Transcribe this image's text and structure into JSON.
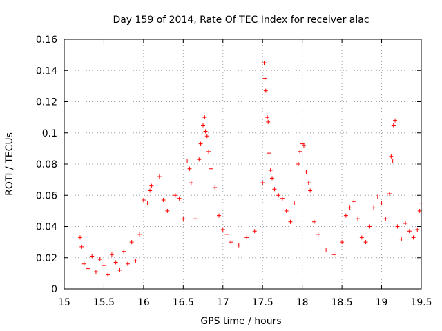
{
  "chart_data": {
    "type": "scatter",
    "title": "Day 159 of 2014, Rate Of TEC Index for receiver alac",
    "xlabel": "GPS time / hours",
    "ylabel": "ROTI / TECUs",
    "xlim": [
      15,
      19.5
    ],
    "ylim": [
      0,
      0.16
    ],
    "grid": true,
    "marker": "+",
    "marker_color": "#ff0000",
    "xticks": [
      15,
      15.5,
      16,
      16.5,
      17,
      17.5,
      18,
      18.5,
      19,
      19.5
    ],
    "xtick_labels": [
      "15",
      "15.5",
      "16",
      "16.5",
      "17",
      "17.5",
      "18",
      "18.5",
      "19",
      "19.5"
    ],
    "yticks": [
      0,
      0.02,
      0.04,
      0.06,
      0.08,
      0.1,
      0.12,
      0.14,
      0.16
    ],
    "ytick_labels": [
      "0",
      "0.02",
      "0.04",
      "0.06",
      "0.08",
      "0.1",
      "0.12",
      "0.14",
      "0.16"
    ],
    "series": [
      {
        "name": "ROTI",
        "points": [
          [
            15.2,
            0.033
          ],
          [
            15.22,
            0.027
          ],
          [
            15.25,
            0.016
          ],
          [
            15.3,
            0.013
          ],
          [
            15.35,
            0.021
          ],
          [
            15.4,
            0.011
          ],
          [
            15.45,
            0.019
          ],
          [
            15.5,
            0.015
          ],
          [
            15.55,
            0.009
          ],
          [
            15.6,
            0.022
          ],
          [
            15.65,
            0.017
          ],
          [
            15.7,
            0.012
          ],
          [
            15.75,
            0.024
          ],
          [
            15.8,
            0.016
          ],
          [
            15.85,
            0.03
          ],
          [
            15.9,
            0.018
          ],
          [
            15.95,
            0.035
          ],
          [
            16.0,
            0.057
          ],
          [
            16.05,
            0.055
          ],
          [
            16.08,
            0.063
          ],
          [
            16.1,
            0.066
          ],
          [
            16.2,
            0.072
          ],
          [
            16.25,
            0.057
          ],
          [
            16.3,
            0.05
          ],
          [
            16.4,
            0.06
          ],
          [
            16.45,
            0.058
          ],
          [
            16.5,
            0.045
          ],
          [
            16.55,
            0.082
          ],
          [
            16.58,
            0.077
          ],
          [
            16.6,
            0.068
          ],
          [
            16.65,
            0.045
          ],
          [
            16.7,
            0.083
          ],
          [
            16.72,
            0.093
          ],
          [
            16.75,
            0.105
          ],
          [
            16.77,
            0.11
          ],
          [
            16.78,
            0.101
          ],
          [
            16.8,
            0.098
          ],
          [
            16.82,
            0.088
          ],
          [
            16.85,
            0.077
          ],
          [
            16.9,
            0.065
          ],
          [
            16.95,
            0.047
          ],
          [
            17.0,
            0.038
          ],
          [
            17.05,
            0.035
          ],
          [
            17.1,
            0.03
          ],
          [
            17.2,
            0.028
          ],
          [
            17.3,
            0.033
          ],
          [
            17.4,
            0.037
          ],
          [
            17.5,
            0.068
          ],
          [
            17.52,
            0.145
          ],
          [
            17.53,
            0.135
          ],
          [
            17.54,
            0.127
          ],
          [
            17.56,
            0.11
          ],
          [
            17.57,
            0.107
          ],
          [
            17.58,
            0.087
          ],
          [
            17.6,
            0.076
          ],
          [
            17.62,
            0.071
          ],
          [
            17.65,
            0.064
          ],
          [
            17.7,
            0.06
          ],
          [
            17.75,
            0.058
          ],
          [
            17.8,
            0.05
          ],
          [
            17.85,
            0.043
          ],
          [
            17.9,
            0.055
          ],
          [
            17.95,
            0.08
          ],
          [
            17.97,
            0.088
          ],
          [
            18.0,
            0.093
          ],
          [
            18.02,
            0.092
          ],
          [
            18.05,
            0.075
          ],
          [
            18.08,
            0.068
          ],
          [
            18.1,
            0.063
          ],
          [
            18.15,
            0.043
          ],
          [
            18.2,
            0.035
          ],
          [
            18.3,
            0.025
          ],
          [
            18.4,
            0.022
          ],
          [
            18.5,
            0.03
          ],
          [
            18.55,
            0.047
          ],
          [
            18.6,
            0.052
          ],
          [
            18.65,
            0.056
          ],
          [
            18.7,
            0.045
          ],
          [
            18.75,
            0.033
          ],
          [
            18.8,
            0.03
          ],
          [
            18.85,
            0.04
          ],
          [
            18.9,
            0.052
          ],
          [
            18.95,
            0.059
          ],
          [
            19.0,
            0.055
          ],
          [
            19.05,
            0.045
          ],
          [
            19.1,
            0.061
          ],
          [
            19.12,
            0.085
          ],
          [
            19.14,
            0.082
          ],
          [
            19.15,
            0.105
          ],
          [
            19.17,
            0.108
          ],
          [
            19.2,
            0.04
          ],
          [
            19.25,
            0.032
          ],
          [
            19.3,
            0.042
          ],
          [
            19.35,
            0.037
          ],
          [
            19.4,
            0.033
          ],
          [
            19.45,
            0.038
          ],
          [
            19.48,
            0.05
          ],
          [
            19.5,
            0.055
          ]
        ]
      }
    ]
  }
}
